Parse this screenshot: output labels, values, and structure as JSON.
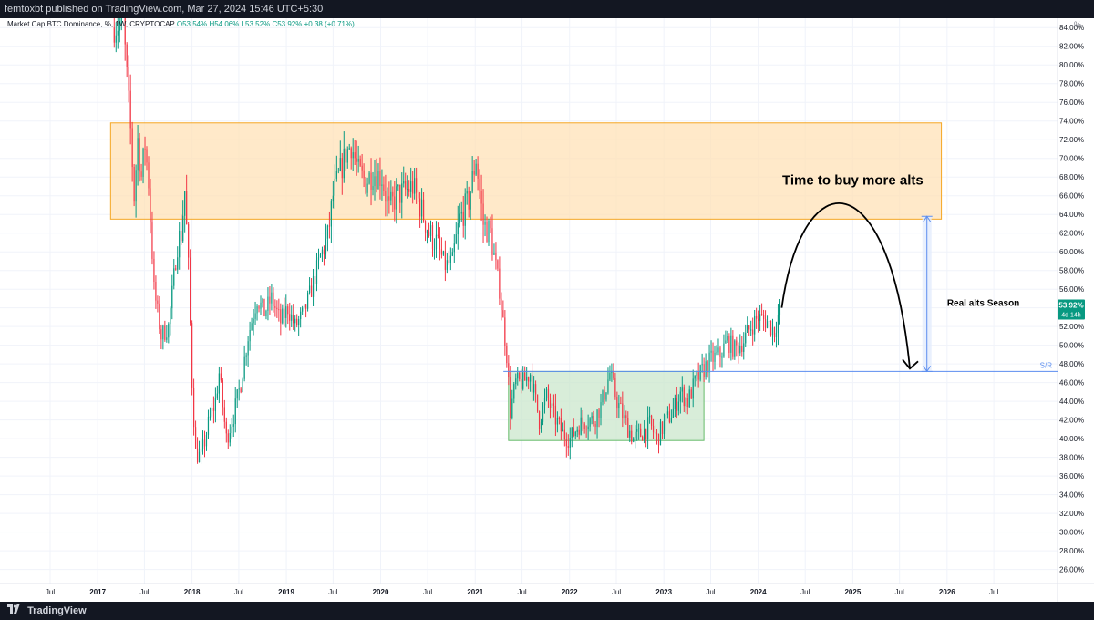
{
  "header": {
    "text": "femtoxbt published on TradingView.com, Mar 27, 2024 15:46 UTC+5:30"
  },
  "legend": {
    "symbol": "Market Cap BTC Dominance, %, 1W, CRYPTOCAP",
    "open": "O53.54%",
    "high": "H54.06%",
    "low": "L53.52%",
    "close": "C53.92%",
    "change": "+0.38 (+0.71%)"
  },
  "price_scale": {
    "unit": "%"
  },
  "footer": {
    "brand": "TradingView"
  },
  "colors": {
    "up": "#089981",
    "down": "#f23645",
    "resistance_zone": "#ffe0b2",
    "resistance_border": "#f5a623",
    "support_zone": "#c8e6c9",
    "support_border": "#66bb6a",
    "sr_line": "#5b8def",
    "measure": "#5b8def"
  },
  "chart_data": {
    "type": "candlestick",
    "title": "",
    "xlabel": "",
    "ylabel": "",
    "ylim": [
      24.5,
      85.0
    ],
    "x_range": [
      "2016-07-01",
      "2026-12-31"
    ],
    "x_tick_labels": [
      {
        "date": "2016-07-01",
        "label": "Jul"
      },
      {
        "date": "2017-01-01",
        "label": "2017"
      },
      {
        "date": "2017-07-01",
        "label": "Jul"
      },
      {
        "date": "2018-01-01",
        "label": "2018"
      },
      {
        "date": "2018-07-01",
        "label": "Jul"
      },
      {
        "date": "2019-01-01",
        "label": "2019"
      },
      {
        "date": "2019-07-01",
        "label": "Jul"
      },
      {
        "date": "2020-01-01",
        "label": "2020"
      },
      {
        "date": "2020-07-01",
        "label": "Jul"
      },
      {
        "date": "2021-01-01",
        "label": "2021"
      },
      {
        "date": "2021-07-01",
        "label": "Jul"
      },
      {
        "date": "2022-01-01",
        "label": "2022"
      },
      {
        "date": "2022-07-01",
        "label": "Jul"
      },
      {
        "date": "2023-01-01",
        "label": "2023"
      },
      {
        "date": "2023-07-01",
        "label": "Jul"
      },
      {
        "date": "2024-01-01",
        "label": "2024"
      },
      {
        "date": "2024-07-01",
        "label": "Jul"
      },
      {
        "date": "2025-01-01",
        "label": "2025"
      },
      {
        "date": "2025-07-01",
        "label": "Jul"
      },
      {
        "date": "2026-01-01",
        "label": "2026"
      },
      {
        "date": "2026-07-01",
        "label": "Jul"
      }
    ],
    "y_ticks": [
      26,
      28,
      30,
      32,
      34,
      36,
      38,
      40,
      42,
      44,
      46,
      48,
      50,
      52,
      54,
      56,
      58,
      60,
      62,
      64,
      66,
      68,
      70,
      72,
      74,
      76,
      78,
      80,
      82,
      84
    ],
    "y_tick_suffix": "%",
    "grid": true,
    "price_path": [
      [
        "2017-03-06",
        84.0
      ],
      [
        "2017-04-10",
        84.5
      ],
      [
        "2017-05-08",
        73.0
      ],
      [
        "2017-05-22",
        66.0
      ],
      [
        "2017-06-05",
        72.0
      ],
      [
        "2017-06-19",
        68.0
      ],
      [
        "2017-07-03",
        71.5
      ],
      [
        "2017-07-17",
        67.5
      ],
      [
        "2017-08-07",
        56.0
      ],
      [
        "2017-09-04",
        51.0
      ],
      [
        "2017-10-02",
        52.0
      ],
      [
        "2017-10-16",
        55.5
      ],
      [
        "2017-11-06",
        61.0
      ],
      [
        "2017-11-20",
        62.0
      ],
      [
        "2017-12-04",
        66.5
      ],
      [
        "2017-12-18",
        58.5
      ],
      [
        "2018-01-01",
        46.0
      ],
      [
        "2018-01-15",
        38.5
      ],
      [
        "2018-02-05",
        38.0
      ],
      [
        "2018-03-05",
        41.5
      ],
      [
        "2018-04-02",
        44.0
      ],
      [
        "2018-04-16",
        47.0
      ],
      [
        "2018-05-14",
        40.0
      ],
      [
        "2018-06-11",
        42.5
      ],
      [
        "2018-07-09",
        46.0
      ],
      [
        "2018-08-06",
        51.0
      ],
      [
        "2018-09-10",
        55.0
      ],
      [
        "2018-10-08",
        53.5
      ],
      [
        "2018-11-05",
        55.0
      ],
      [
        "2018-12-10",
        52.5
      ],
      [
        "2019-01-07",
        54.0
      ],
      [
        "2019-02-04",
        52.0
      ],
      [
        "2019-03-11",
        53.5
      ],
      [
        "2019-04-08",
        56.0
      ],
      [
        "2019-05-13",
        59.5
      ],
      [
        "2019-06-10",
        61.5
      ],
      [
        "2019-07-01",
        66.0
      ],
      [
        "2019-07-22",
        68.0
      ],
      [
        "2019-08-19",
        70.5
      ],
      [
        "2019-09-09",
        71.5
      ],
      [
        "2019-10-07",
        68.5
      ],
      [
        "2019-11-04",
        67.5
      ],
      [
        "2019-12-02",
        68.5
      ],
      [
        "2020-01-06",
        68.0
      ],
      [
        "2020-02-03",
        64.5
      ],
      [
        "2020-03-02",
        66.0
      ],
      [
        "2020-04-06",
        66.5
      ],
      [
        "2020-05-04",
        67.0
      ],
      [
        "2020-06-01",
        65.0
      ],
      [
        "2020-07-06",
        62.0
      ],
      [
        "2020-08-03",
        61.0
      ],
      [
        "2020-09-07",
        58.5
      ],
      [
        "2020-10-05",
        59.0
      ],
      [
        "2020-11-02",
        63.5
      ],
      [
        "2020-12-07",
        65.5
      ],
      [
        "2021-01-04",
        70.0
      ],
      [
        "2021-02-01",
        63.0
      ],
      [
        "2021-03-01",
        62.0
      ],
      [
        "2021-04-05",
        56.0
      ],
      [
        "2021-05-03",
        49.0
      ],
      [
        "2021-05-17",
        43.0
      ],
      [
        "2021-06-07",
        46.0
      ],
      [
        "2021-07-05",
        46.0
      ],
      [
        "2021-08-02",
        47.0
      ],
      [
        "2021-09-06",
        42.0
      ],
      [
        "2021-10-04",
        44.5
      ],
      [
        "2021-11-01",
        42.5
      ],
      [
        "2021-12-06",
        40.5
      ],
      [
        "2022-01-03",
        40.0
      ],
      [
        "2022-02-07",
        41.5
      ],
      [
        "2022-03-07",
        42.0
      ],
      [
        "2022-04-04",
        42.0
      ],
      [
        "2022-05-02",
        43.5
      ],
      [
        "2022-06-06",
        47.0
      ],
      [
        "2022-07-04",
        44.0
      ],
      [
        "2022-08-01",
        42.0
      ],
      [
        "2022-09-05",
        40.0
      ],
      [
        "2022-10-03",
        40.5
      ],
      [
        "2022-11-07",
        41.5
      ],
      [
        "2022-12-05",
        40.0
      ],
      [
        "2023-01-02",
        41.5
      ],
      [
        "2023-02-06",
        43.0
      ],
      [
        "2023-03-06",
        45.0
      ],
      [
        "2023-04-03",
        44.0
      ],
      [
        "2023-05-01",
        46.0
      ],
      [
        "2023-06-05",
        47.5
      ],
      [
        "2023-07-03",
        48.5
      ],
      [
        "2023-08-07",
        49.0
      ],
      [
        "2023-09-04",
        50.5
      ],
      [
        "2023-10-02",
        49.5
      ],
      [
        "2023-11-06",
        50.5
      ],
      [
        "2023-12-04",
        52.0
      ],
      [
        "2024-01-01",
        53.0
      ],
      [
        "2024-02-05",
        52.5
      ],
      [
        "2024-03-04",
        51.5
      ],
      [
        "2024-03-25",
        53.92
      ]
    ],
    "annotations": [
      {
        "type": "rectangle",
        "label": "",
        "x0": "2017-02-20",
        "x1": "2025-12-10",
        "y0": 63.5,
        "y1": 73.8,
        "fill": "#ffe0b2",
        "stroke": "#f5a623"
      },
      {
        "type": "rectangle",
        "label": "",
        "x0": "2021-05-10",
        "x1": "2023-06-05",
        "y0": 39.8,
        "y1": 47.2,
        "fill": "#c8e6c9",
        "stroke": "#66bb6a"
      },
      {
        "type": "hline",
        "label": "S/R",
        "y": 47.2,
        "x0": "2021-04-20"
      },
      {
        "type": "text",
        "label": "Time to buy more alts",
        "x": "2025-01-01",
        "y": 67.2
      },
      {
        "type": "text",
        "label": "Real alts Season",
        "x": "2026-01-01",
        "y": 54.2
      },
      {
        "type": "measure",
        "label": "",
        "x": "2025-10-15",
        "y0": 47.2,
        "y1": 63.8
      },
      {
        "type": "curve",
        "label": "",
        "from": [
          "2024-04-01",
          54.0
        ],
        "peak": [
          "2024-12-25",
          65.0
        ],
        "to": [
          "2025-08-10",
          47.5
        ]
      }
    ],
    "last_price_label": {
      "value": "53.92%",
      "countdown": "4d 14h",
      "y": 53.92
    }
  }
}
